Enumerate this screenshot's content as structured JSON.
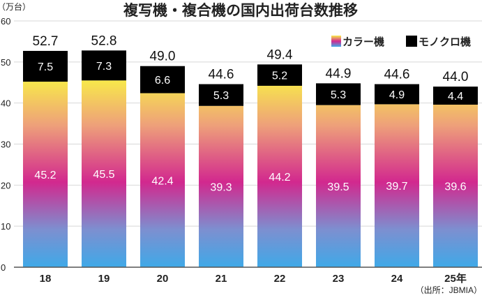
{
  "chart_data": {
    "type": "bar",
    "stacked": true,
    "title": "複写機・複合機の国内出荷台数推移",
    "ylabel": "（万台）",
    "xlabel": "",
    "source": "（出所：JBMIA）",
    "ylim": [
      0,
      60
    ],
    "yticks": [
      0,
      10,
      20,
      30,
      40,
      50,
      60
    ],
    "grid": true,
    "legend_position": "top-right",
    "categories": [
      "18",
      "19",
      "20",
      "21",
      "22",
      "23",
      "24",
      "25年"
    ],
    "series": [
      {
        "name": "カラー機",
        "values": [
          45.2,
          45.5,
          42.4,
          39.3,
          44.2,
          39.5,
          39.7,
          39.6
        ],
        "labels": [
          "45.2",
          "45.5",
          "42.4",
          "39.3",
          "44.2",
          "39.5",
          "39.7",
          "39.6"
        ]
      },
      {
        "name": "モノクロ機",
        "values": [
          7.5,
          7.3,
          6.6,
          5.3,
          5.2,
          5.3,
          4.9,
          4.4
        ],
        "labels": [
          "7.5",
          "7.3",
          "6.6",
          "5.3",
          "5.2",
          "5.3",
          "4.9",
          "4.4"
        ]
      }
    ],
    "totals": [
      "52.7",
      "52.8",
      "49.0",
      "44.6",
      "49.4",
      "44.9",
      "44.6",
      "44.0"
    ],
    "colors": {
      "color_bottom": "#3fa9e8",
      "color_mid": "#d2288e",
      "color_top": "#f8ec48",
      "mono": "#000000",
      "grid": "#d8d8d8",
      "axis": "#555555"
    }
  }
}
